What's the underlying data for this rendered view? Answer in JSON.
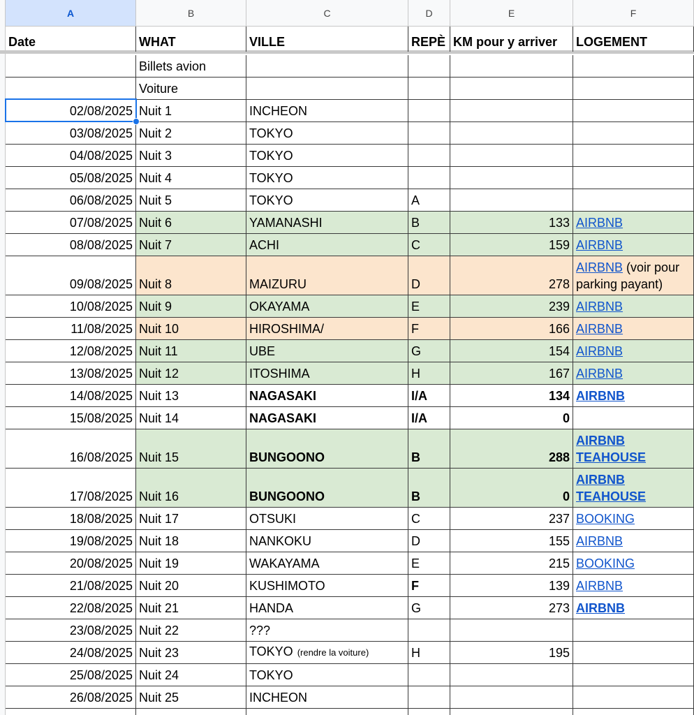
{
  "table": {
    "columns": [
      "A",
      "B",
      "C",
      "D",
      "E",
      "F"
    ],
    "header": [
      "Date",
      "WHAT",
      "VILLE",
      "REPÈ",
      "KM pour y arriver",
      "LOGEMENT"
    ],
    "rows": [
      {
        "cells": [
          null,
          "Billets avion",
          null,
          null,
          null,
          null
        ]
      },
      {
        "cells": [
          null,
          "Voiture",
          null,
          null,
          null,
          null
        ]
      },
      {
        "cells": [
          "02/08/2025",
          "Nuit 1",
          "INCHEON",
          null,
          null,
          null
        ]
      },
      {
        "cells": [
          "03/08/2025",
          "Nuit 2",
          "TOKYO",
          null,
          null,
          null
        ]
      },
      {
        "cells": [
          "04/08/2025",
          "Nuit 3",
          "TOKYO",
          null,
          null,
          null
        ]
      },
      {
        "cells": [
          "05/08/2025",
          "Nuit 4",
          "TOKYO",
          null,
          null,
          null
        ]
      },
      {
        "cells": [
          "06/08/2025",
          "Nuit 5",
          "TOKYO",
          "A",
          null,
          null
        ]
      },
      {
        "cells": [
          "07/08/2025",
          "Nuit 6",
          "YAMANASHI",
          "B",
          133,
          "AIRBNB"
        ],
        "fill": "#d9ead3"
      },
      {
        "cells": [
          "08/08/2025",
          "Nuit 7",
          "ACHI",
          "C",
          159,
          "AIRBNB"
        ],
        "fill": "#d9ead3"
      },
      {
        "cells": [
          "09/08/2025",
          "Nuit 8",
          "MAIZURU",
          "D",
          278,
          {
            "link": "AIRBNB",
            "text": "(voir pour parking payant)"
          }
        ],
        "fill": "#fce5cd"
      },
      {
        "cells": [
          "10/08/2025",
          "Nuit 9",
          "OKAYAMA",
          "E",
          239,
          "AIRBNB"
        ],
        "fill": "#d9ead3"
      },
      {
        "cells": [
          "11/08/2025",
          "Nuit 10",
          "HIROSHIMA/",
          "F",
          166,
          "AIRBNB"
        ],
        "fill": "#fce5cd"
      },
      {
        "cells": [
          "12/08/2025",
          "Nuit 11",
          "UBE",
          "G",
          154,
          "AIRBNB"
        ],
        "fill": "#d9ead3"
      },
      {
        "cells": [
          "13/08/2025",
          "Nuit 12",
          "ITOSHIMA",
          "H",
          167,
          "AIRBNB"
        ],
        "fill": "#d9ead3"
      },
      {
        "cells": [
          "14/08/2025",
          "Nuit 13",
          "NAGASAKI",
          "I/A",
          134,
          "AIRBNB"
        ]
      },
      {
        "cells": [
          "15/08/2025",
          "Nuit 14",
          "NAGASAKI",
          "I/A",
          0,
          null
        ]
      },
      {
        "cells": [
          "16/08/2025",
          "Nuit 15",
          "BUNGOONO",
          "B",
          288,
          [
            "AIRBNB",
            "TEAHOUSE"
          ]
        ],
        "fill": "#d9ead3"
      },
      {
        "cells": [
          "17/08/2025",
          "Nuit 16",
          "BUNGOONO",
          "B",
          0,
          [
            "AIRBNB",
            "TEAHOUSE"
          ]
        ],
        "fill": "#d9ead3"
      },
      {
        "cells": [
          "18/08/2025",
          "Nuit 17",
          "OTSUKI",
          "C",
          237,
          "BOOKING"
        ]
      },
      {
        "cells": [
          "19/08/2025",
          "Nuit 18",
          "NANKOKU",
          "D",
          155,
          "AIRBNB"
        ]
      },
      {
        "cells": [
          "20/08/2025",
          "Nuit 19",
          "WAKAYAMA",
          "E",
          215,
          "BOOKING"
        ]
      },
      {
        "cells": [
          "21/08/2025",
          "Nuit 20",
          "KUSHIMOTO",
          "F",
          139,
          "AIRBNB"
        ]
      },
      {
        "cells": [
          "22/08/2025",
          "Nuit 21",
          "HANDA",
          "G",
          273,
          "AIRBNB"
        ]
      },
      {
        "cells": [
          "23/08/2025",
          "Nuit 22",
          "???",
          null,
          null,
          null
        ]
      },
      {
        "cells": [
          "24/08/2025",
          "Nuit 23",
          {
            "text": "TOKYO",
            "note": "(rendre la voiture)"
          },
          "H",
          195,
          null
        ]
      },
      {
        "cells": [
          "25/08/2025",
          "Nuit 24",
          "TOKYO",
          null,
          null,
          null
        ]
      },
      {
        "cells": [
          "26/08/2025",
          "Nuit 25",
          "INCHEON",
          null,
          null,
          null
        ]
      }
    ]
  }
}
